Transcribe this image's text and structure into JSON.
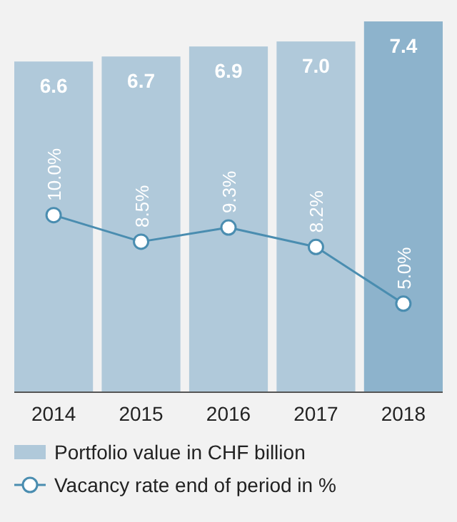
{
  "chart_data": {
    "type": "bar",
    "categories": [
      "2014",
      "2015",
      "2016",
      "2017",
      "2018"
    ],
    "series": [
      {
        "name": "Portfolio value in CHF billion",
        "color": "#b0c9da",
        "colors": [
          "#b0c9da",
          "#b0c9da",
          "#b0c9da",
          "#b0c9da",
          "#8db3cc"
        ],
        "values": [
          6.6,
          6.7,
          6.9,
          7.0,
          7.4
        ],
        "value_labels": [
          "6.6",
          "6.7",
          "6.9",
          "7.0",
          "7.4"
        ]
      },
      {
        "name": "Vacancy rate end of period in %",
        "type": "line",
        "axis": "y2",
        "color": "#4a8db0",
        "values": [
          10.0,
          8.5,
          9.3,
          8.2,
          5.0
        ],
        "value_labels": [
          "10.0%",
          "8.5%",
          "9.3%",
          "8.2%",
          "5.0%"
        ]
      }
    ],
    "tick_labels": "x",
    "legend": "bottom",
    "marker": "circle",
    "line_style": "solid"
  }
}
